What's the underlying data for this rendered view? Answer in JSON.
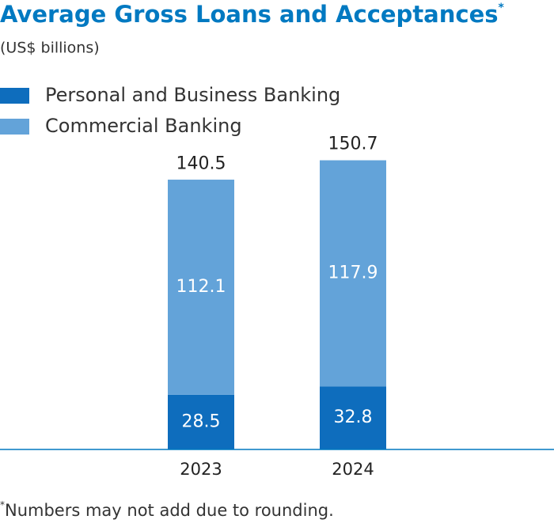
{
  "chart_data": {
    "type": "stacked_bar",
    "title": "Average Gross Loans and Acceptances",
    "title_mark": "*",
    "subtitle": "(US$ billions)",
    "categories": [
      "2023",
      "2024"
    ],
    "series": [
      {
        "name": "Personal and Business Banking",
        "color": "#0e6dbd",
        "values": [
          28.5,
          32.8
        ]
      },
      {
        "name": "Commercial Banking",
        "color": "#63a3d9",
        "values": [
          112.1,
          117.9
        ]
      }
    ],
    "totals": [
      140.5,
      150.7
    ],
    "ylim": [
      0,
      160
    ],
    "footnote_mark": "*",
    "footnote": "Numbers may not add due to rounding."
  }
}
